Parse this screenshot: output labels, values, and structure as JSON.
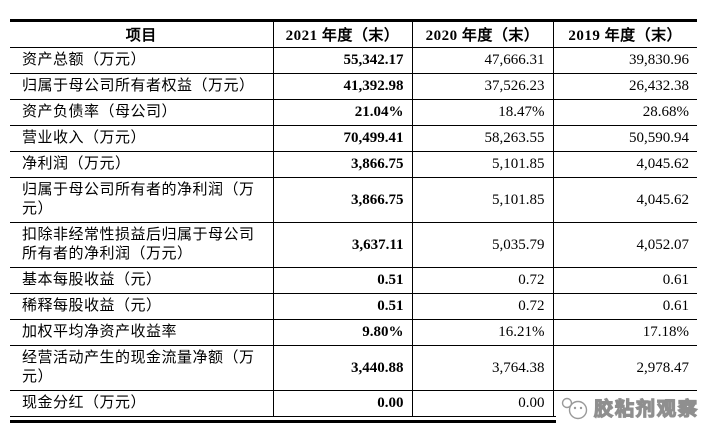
{
  "table": {
    "headers": [
      "项目",
      "2021 年度（末）",
      "2020 年度（末）",
      "2019 年度（末）"
    ],
    "rows": [
      {
        "label": "资产总额（万元）",
        "values": [
          "55,342.17",
          "47,666.31",
          "39,830.96"
        ]
      },
      {
        "label": "归属于母公司所有者权益（万元）",
        "values": [
          "41,392.98",
          "37,526.23",
          "26,432.38"
        ]
      },
      {
        "label": "资产负债率（母公司）",
        "values": [
          "21.04%",
          "18.47%",
          "28.68%"
        ]
      },
      {
        "label": "营业收入（万元）",
        "values": [
          "70,499.41",
          "58,263.55",
          "50,590.94"
        ]
      },
      {
        "label": "净利润（万元）",
        "values": [
          "3,866.75",
          "5,101.85",
          "4,045.62"
        ]
      },
      {
        "label": "归属于母公司所有者的净利润（万元）",
        "values": [
          "3,866.75",
          "5,101.85",
          "4,045.62"
        ]
      },
      {
        "label": "扣除非经常性损益后归属于母公司所有者的净利润（万元）",
        "values": [
          "3,637.11",
          "5,035.79",
          "4,052.07"
        ]
      },
      {
        "label": "基本每股收益（元）",
        "values": [
          "0.51",
          "0.72",
          "0.61"
        ]
      },
      {
        "label": "稀释每股收益（元）",
        "values": [
          "0.51",
          "0.72",
          "0.61"
        ]
      },
      {
        "label": "加权平均净资产收益率",
        "values": [
          "9.80%",
          "16.21%",
          "17.18%"
        ]
      },
      {
        "label": "经营活动产生的现金流量净额（万元）",
        "values": [
          "3,440.88",
          "3,764.38",
          "2,978.47"
        ]
      },
      {
        "label": "现金分红（万元）",
        "values": [
          "0.00",
          "0.00",
          ""
        ]
      }
    ]
  },
  "watermark": {
    "text": "胶粘剂观察",
    "icon": "logo-circles-icon",
    "stroke_color": "#8f8f8f"
  },
  "colors": {
    "background": "#ffffff",
    "text": "#000000",
    "border": "#000000"
  }
}
